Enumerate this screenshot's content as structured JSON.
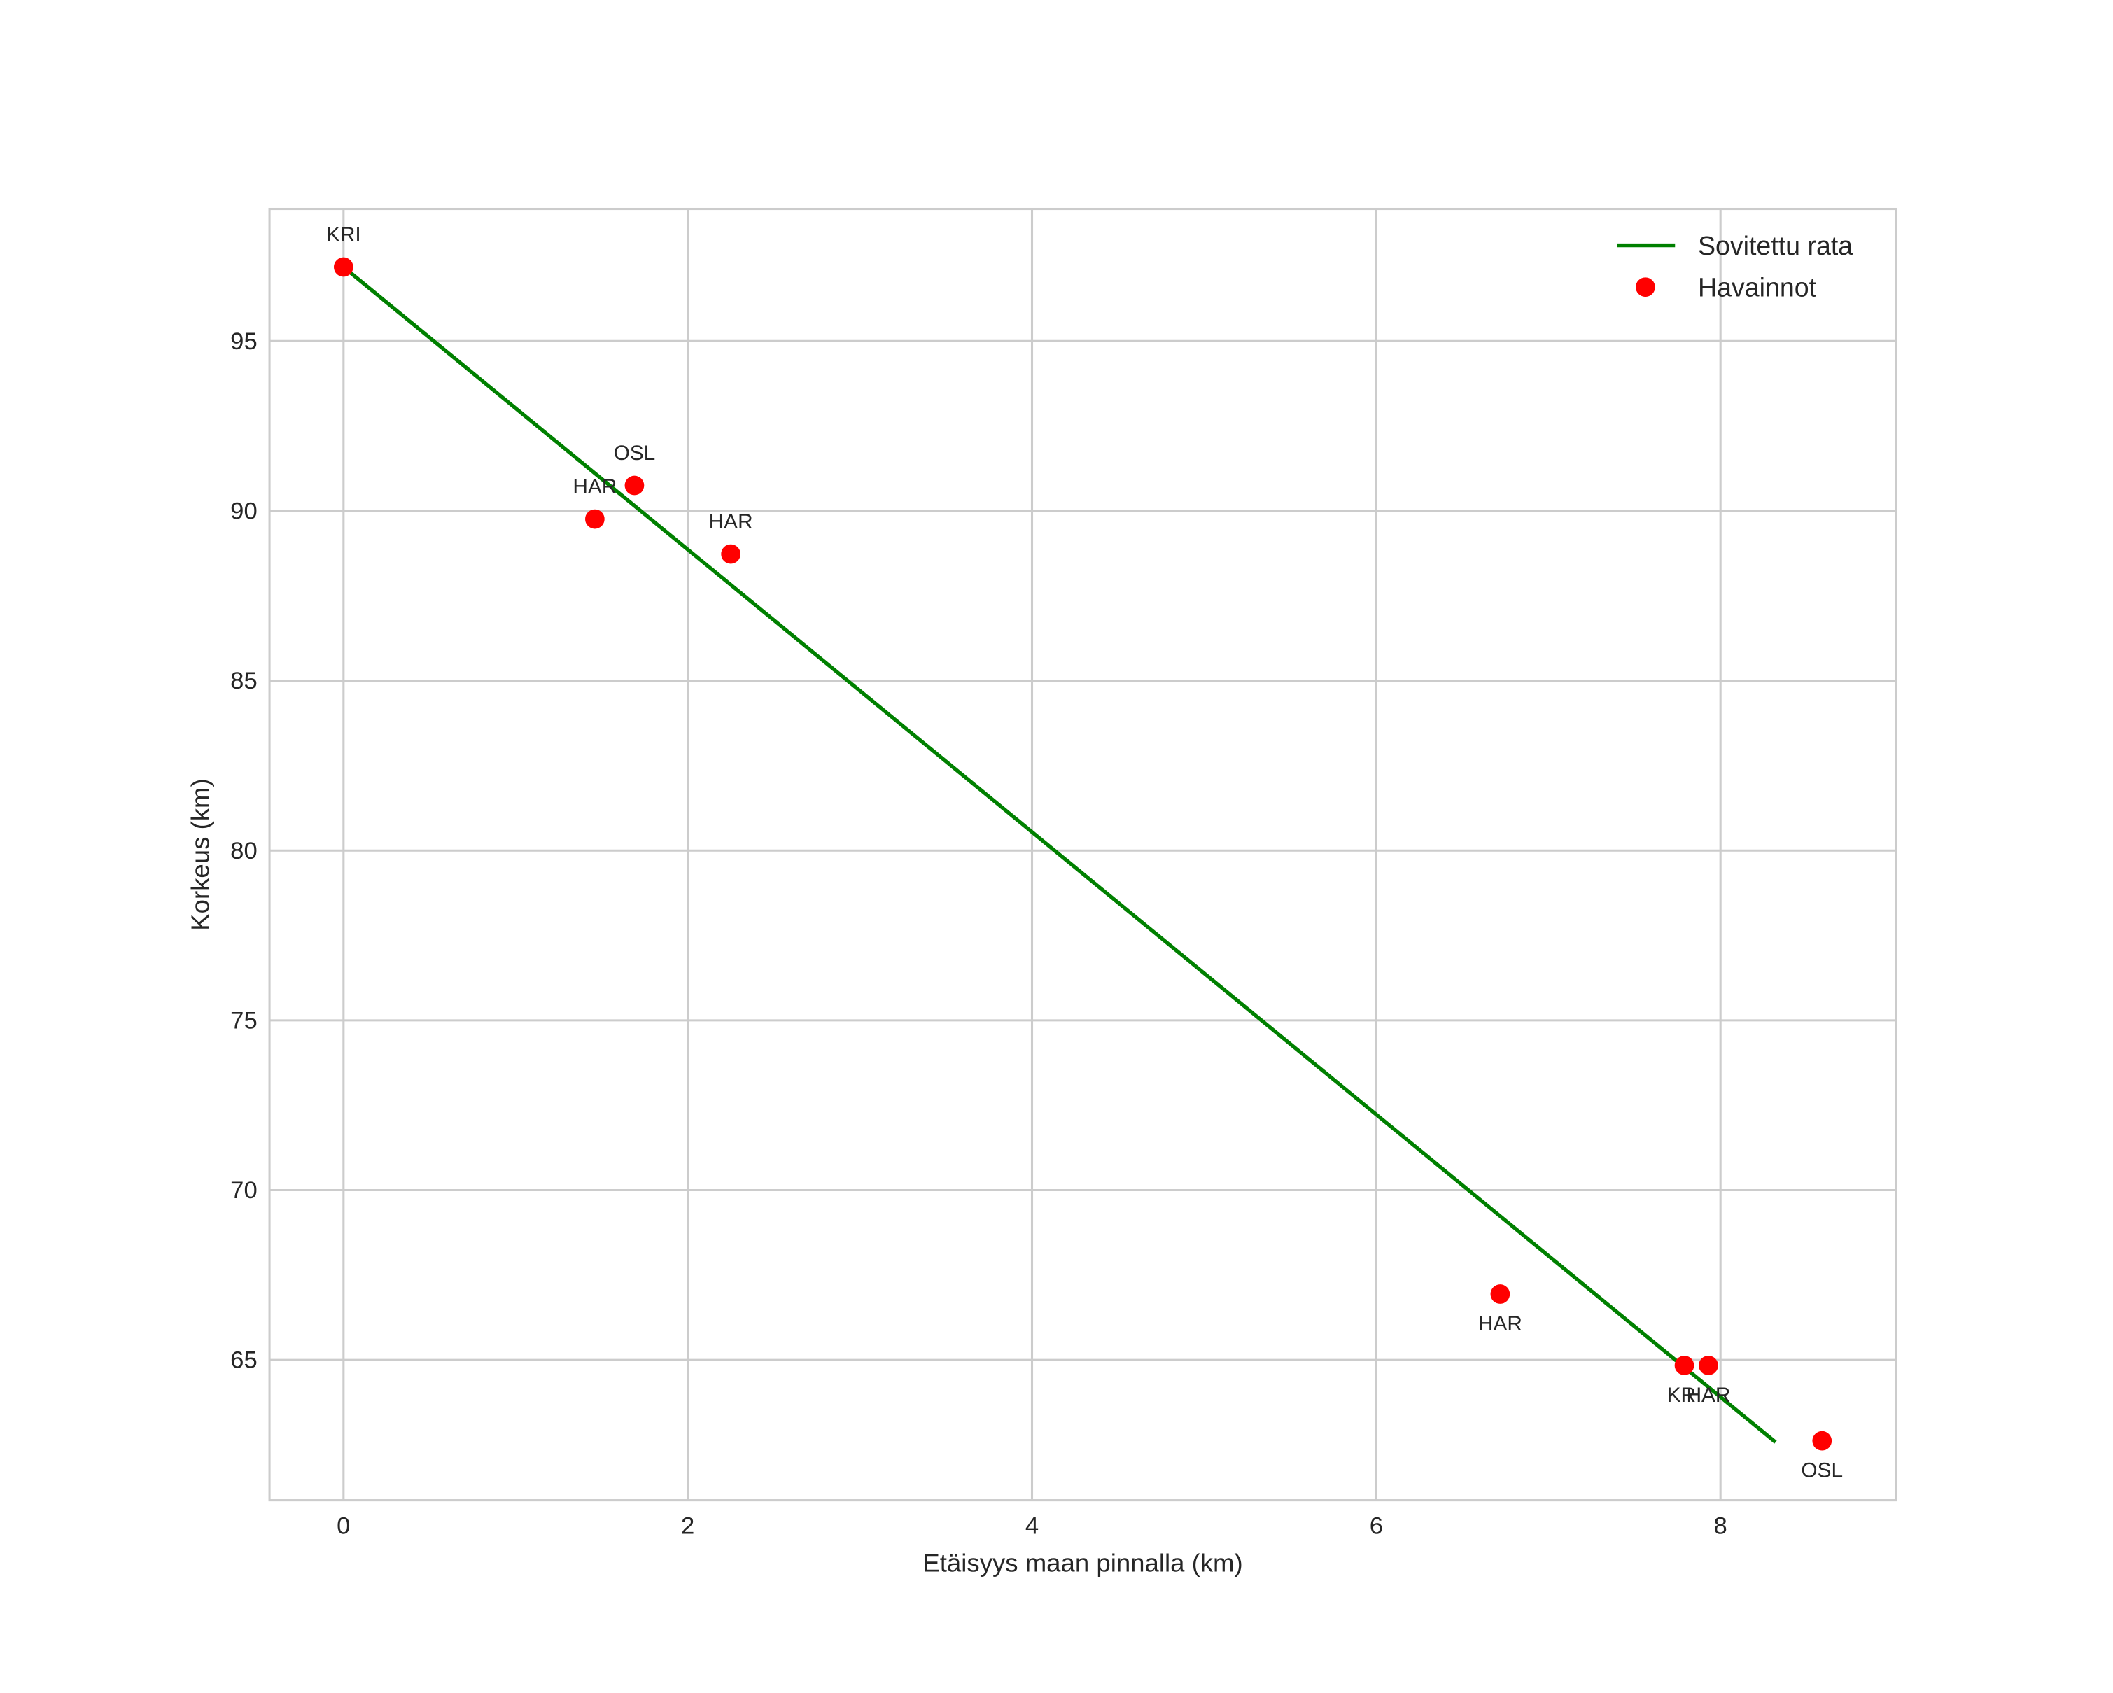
{
  "chart_data": {
    "type": "scatter",
    "title": "",
    "xlabel": "Etäisyys maan pinnalla (km)",
    "ylabel": "Korkeus (km)",
    "xlim": [
      -0.43,
      9.02
    ],
    "ylim": [
      60.87,
      98.89
    ],
    "xticks": [
      0,
      2,
      4,
      6,
      8
    ],
    "yticks": [
      65,
      70,
      75,
      80,
      85,
      90,
      95
    ],
    "grid": true,
    "legend_position": "upper right",
    "series": [
      {
        "name": "Sovitettu rata",
        "kind": "line",
        "color": "#008000",
        "x": [
          0.0,
          8.32
        ],
        "y": [
          97.18,
          62.58
        ]
      },
      {
        "name": "Havainnot",
        "kind": "scatter",
        "color": "#ff0000",
        "points": [
          {
            "x": 0.0,
            "y": 97.18,
            "label": "KRI",
            "label_pos": "above"
          },
          {
            "x": 1.69,
            "y": 90.75,
            "label": "OSL",
            "label_pos": "above"
          },
          {
            "x": 1.46,
            "y": 89.76,
            "label": "HAR",
            "label_pos": "above"
          },
          {
            "x": 2.25,
            "y": 88.73,
            "label": "HAR",
            "label_pos": "above"
          },
          {
            "x": 6.72,
            "y": 66.94,
            "label": "HAR",
            "label_pos": "below"
          },
          {
            "x": 7.79,
            "y": 64.84,
            "label": "KRI",
            "label_pos": "below"
          },
          {
            "x": 7.93,
            "y": 64.84,
            "label": "HAR",
            "label_pos": "below"
          },
          {
            "x": 8.59,
            "y": 62.62,
            "label": "OSL",
            "label_pos": "below"
          }
        ]
      }
    ]
  },
  "legend": {
    "items": [
      {
        "label": "Sovitettu rata",
        "marker": "line",
        "color": "#008000"
      },
      {
        "label": "Havainnot",
        "marker": "dot",
        "color": "#ff0000"
      }
    ]
  },
  "style": {
    "grid_color": "#cccccc",
    "spine_color": "#cccccc",
    "text_color": "#262626"
  }
}
